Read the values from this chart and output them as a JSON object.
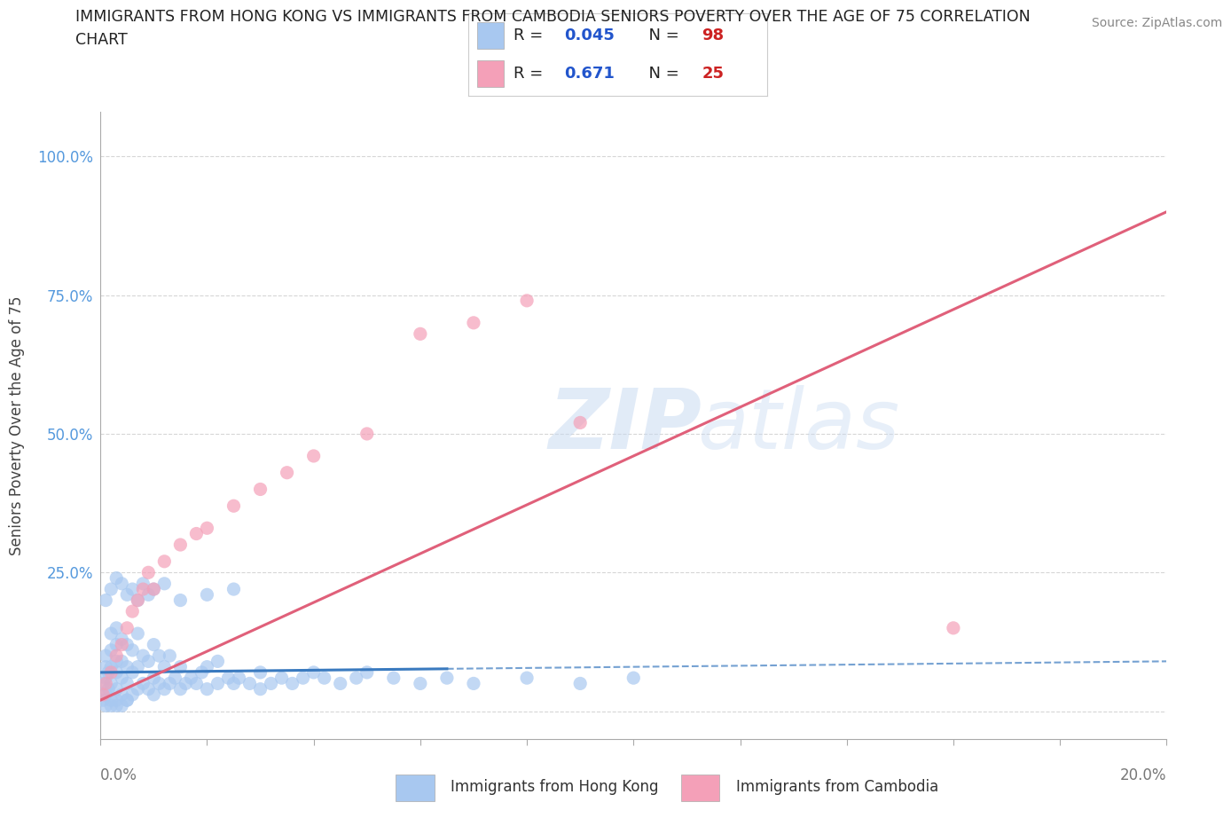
{
  "title": "IMMIGRANTS FROM HONG KONG VS IMMIGRANTS FROM CAMBODIA SENIORS POVERTY OVER THE AGE OF 75 CORRELATION\nCHART",
  "source": "Source: ZipAtlas.com",
  "ylabel": "Seniors Poverty Over the Age of 75",
  "yticks": [
    0.0,
    0.25,
    0.5,
    0.75,
    1.0
  ],
  "ytick_labels": [
    "",
    "25.0%",
    "50.0%",
    "75.0%",
    "100.0%"
  ],
  "xlim": [
    0.0,
    0.2
  ],
  "ylim": [
    -0.05,
    1.08
  ],
  "hk_R": 0.045,
  "hk_N": 98,
  "cam_R": 0.671,
  "cam_N": 25,
  "hk_color": "#a8c8f0",
  "hk_line_color": "#3a7abf",
  "cam_color": "#f4a0b8",
  "cam_line_color": "#e0607a",
  "hk_scatter_x": [
    0.0005,
    0.0005,
    0.001,
    0.001,
    0.001,
    0.001,
    0.001,
    0.0015,
    0.0015,
    0.002,
    0.002,
    0.002,
    0.002,
    0.002,
    0.003,
    0.003,
    0.003,
    0.003,
    0.003,
    0.003,
    0.004,
    0.004,
    0.004,
    0.004,
    0.005,
    0.005,
    0.005,
    0.005,
    0.006,
    0.006,
    0.006,
    0.007,
    0.007,
    0.007,
    0.008,
    0.008,
    0.009,
    0.009,
    0.01,
    0.01,
    0.01,
    0.011,
    0.011,
    0.012,
    0.012,
    0.013,
    0.013,
    0.014,
    0.015,
    0.015,
    0.016,
    0.017,
    0.018,
    0.019,
    0.02,
    0.02,
    0.022,
    0.022,
    0.024,
    0.025,
    0.026,
    0.028,
    0.03,
    0.03,
    0.032,
    0.034,
    0.036,
    0.038,
    0.04,
    0.042,
    0.045,
    0.048,
    0.05,
    0.055,
    0.06,
    0.065,
    0.07,
    0.08,
    0.09,
    0.1,
    0.001,
    0.002,
    0.003,
    0.004,
    0.005,
    0.006,
    0.007,
    0.008,
    0.009,
    0.01,
    0.012,
    0.015,
    0.02,
    0.025,
    0.002,
    0.003,
    0.004,
    0.005
  ],
  "hk_scatter_y": [
    0.02,
    0.05,
    0.01,
    0.03,
    0.06,
    0.08,
    0.1,
    0.04,
    0.07,
    0.02,
    0.05,
    0.08,
    0.11,
    0.14,
    0.01,
    0.04,
    0.07,
    0.09,
    0.12,
    0.15,
    0.03,
    0.06,
    0.09,
    0.13,
    0.02,
    0.05,
    0.08,
    0.12,
    0.03,
    0.07,
    0.11,
    0.04,
    0.08,
    0.14,
    0.05,
    0.1,
    0.04,
    0.09,
    0.03,
    0.06,
    0.12,
    0.05,
    0.1,
    0.04,
    0.08,
    0.05,
    0.1,
    0.06,
    0.04,
    0.08,
    0.05,
    0.06,
    0.05,
    0.07,
    0.04,
    0.08,
    0.05,
    0.09,
    0.06,
    0.05,
    0.06,
    0.05,
    0.04,
    0.07,
    0.05,
    0.06,
    0.05,
    0.06,
    0.07,
    0.06,
    0.05,
    0.06,
    0.07,
    0.06,
    0.05,
    0.06,
    0.05,
    0.06,
    0.05,
    0.06,
    0.2,
    0.22,
    0.24,
    0.23,
    0.21,
    0.22,
    0.2,
    0.23,
    0.21,
    0.22,
    0.23,
    0.2,
    0.21,
    0.22,
    0.01,
    0.02,
    0.01,
    0.02
  ],
  "cam_scatter_x": [
    0.0005,
    0.001,
    0.002,
    0.003,
    0.004,
    0.005,
    0.006,
    0.007,
    0.008,
    0.009,
    0.01,
    0.012,
    0.015,
    0.018,
    0.02,
    0.025,
    0.03,
    0.035,
    0.04,
    0.05,
    0.06,
    0.07,
    0.08,
    0.09,
    0.16
  ],
  "cam_scatter_y": [
    0.03,
    0.05,
    0.07,
    0.1,
    0.12,
    0.15,
    0.18,
    0.2,
    0.22,
    0.25,
    0.22,
    0.27,
    0.3,
    0.32,
    0.33,
    0.37,
    0.4,
    0.43,
    0.46,
    0.5,
    0.68,
    0.7,
    0.74,
    0.52,
    0.15
  ],
  "watermark_line1": "ZIP",
  "watermark_line2": "atlas",
  "background_color": "#ffffff",
  "grid_color": "#cccccc"
}
